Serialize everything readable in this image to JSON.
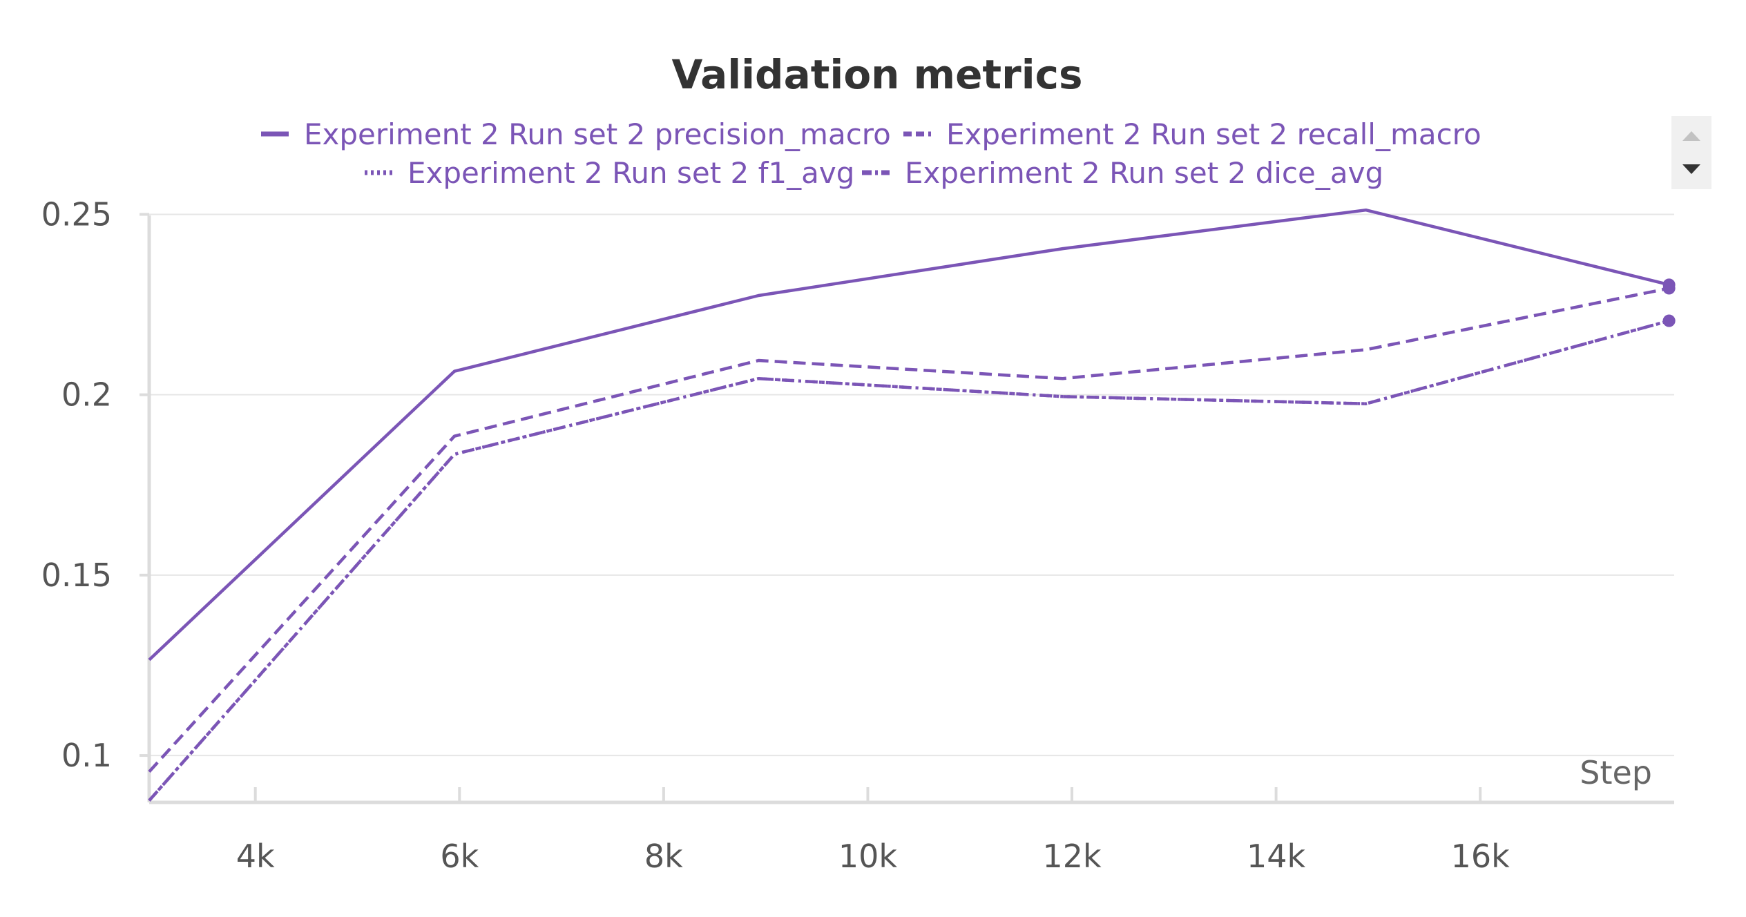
{
  "chart_data": {
    "type": "line",
    "title": "Validation metrics",
    "xlabel": "Step",
    "ylabel": "",
    "xlim": [
      2960,
      17900
    ],
    "ylim": [
      0.087,
      0.252
    ],
    "x_ticks": [
      4000,
      6000,
      8000,
      10000,
      12000,
      14000,
      16000
    ],
    "x_tick_labels": [
      "4k",
      "6k",
      "8k",
      "10k",
      "12k",
      "14k",
      "16k"
    ],
    "y_ticks": [
      0.1,
      0.15,
      0.2,
      0.25
    ],
    "y_tick_labels": [
      "0.1",
      "0.15",
      "0.2",
      "0.25"
    ],
    "grid": true,
    "legend_position": "top",
    "color": "#7b55b6",
    "series": [
      {
        "name": "Experiment 2 Run set 2 precision_macro",
        "dash": "solid",
        "x": [
          2960,
          5950,
          8930,
          11910,
          14880,
          17850
        ],
        "y": [
          0.1265,
          0.2065,
          0.2275,
          0.2405,
          0.2512,
          0.2305
        ]
      },
      {
        "name": "Experiment 2 Run set 2 recall_macro",
        "dash": "dashed",
        "x": [
          2960,
          5950,
          8930,
          11910,
          14880,
          17850
        ],
        "y": [
          0.0955,
          0.1885,
          0.2095,
          0.2045,
          0.2125,
          0.2295
        ]
      },
      {
        "name": "Experiment 2 Run set 2 f1_avg",
        "dash": "dotted",
        "x": [
          2960,
          5950,
          8930,
          11910,
          14880,
          17850
        ],
        "y": [
          0.0875,
          0.1835,
          0.2045,
          0.1995,
          0.1975,
          0.2205
        ]
      },
      {
        "name": "Experiment 2 Run set 2 dice_avg",
        "dash": "dashdot",
        "x": [
          2960,
          5950,
          8930,
          11910,
          14880,
          17850
        ],
        "y": [
          0.0875,
          0.1835,
          0.2045,
          0.1995,
          0.1975,
          0.2205
        ]
      }
    ]
  }
}
